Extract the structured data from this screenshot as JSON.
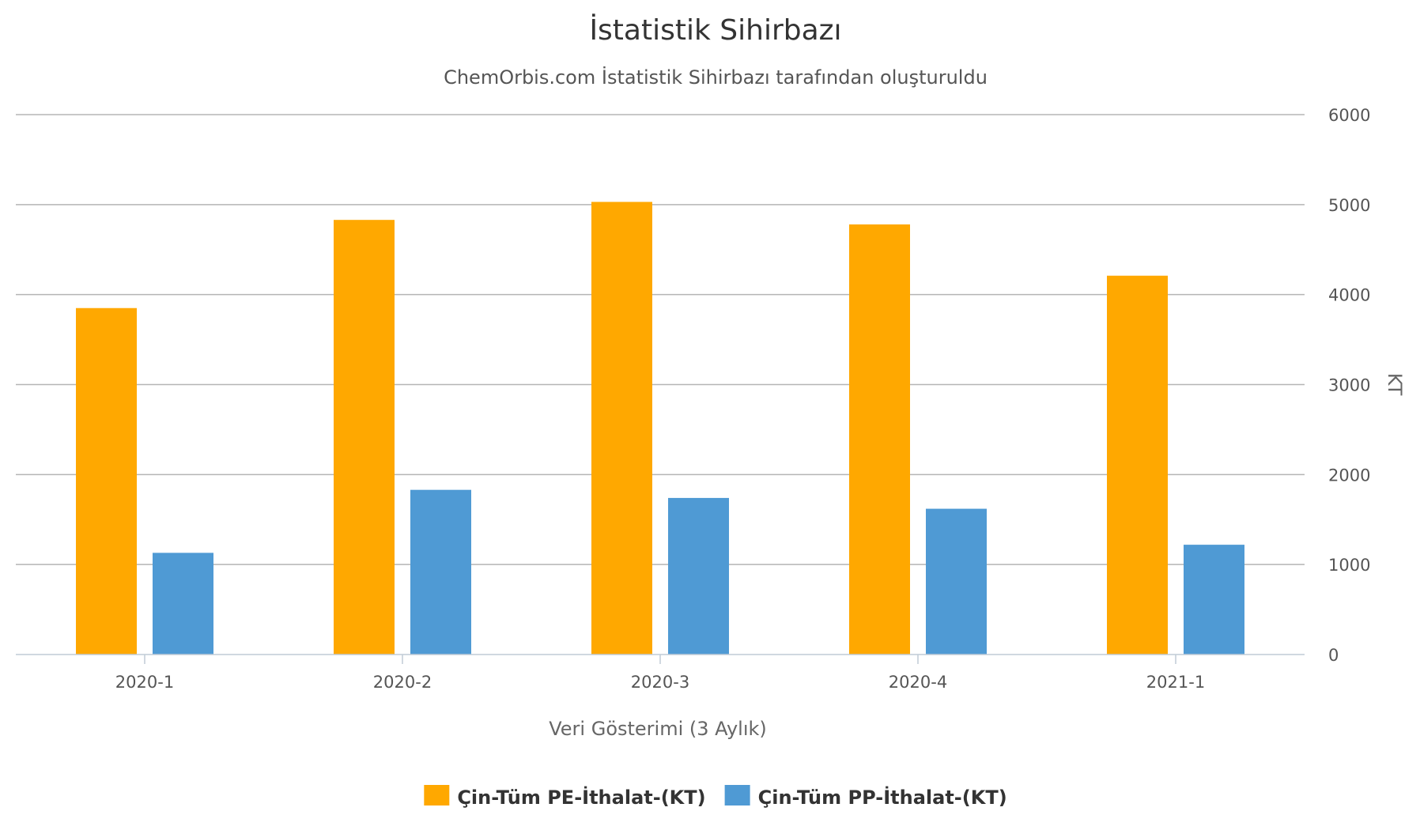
{
  "chart_data": {
    "type": "bar",
    "title": "İstatistik Sihirbazı",
    "subtitle": "ChemOrbis.com İstatistik Sihirbazı tarafından oluşturuldu",
    "xlabel": "Veri Gösterimi (3 Aylık)",
    "ylabel": "KT",
    "ylim": [
      0,
      6000
    ],
    "yticks": [
      "0",
      "1000",
      "2000",
      "3000",
      "4000",
      "5000",
      "6000"
    ],
    "y_axis_side": "right",
    "grid": true,
    "legend_position": "bottom-center",
    "categories": [
      "2020-1",
      "2020-2",
      "2020-3",
      "2020-4",
      "2021-1"
    ],
    "series": [
      {
        "name": "Çin-Tüm PE-İthalat-(KT)",
        "color": "#FFA800",
        "values": [
          3850,
          4830,
          5030,
          4780,
          4210
        ]
      },
      {
        "name": "Çin-Tüm PP-İthalat-(KT)",
        "color": "#4F9AD4",
        "values": [
          1130,
          1830,
          1740,
          1620,
          1220
        ]
      }
    ]
  }
}
